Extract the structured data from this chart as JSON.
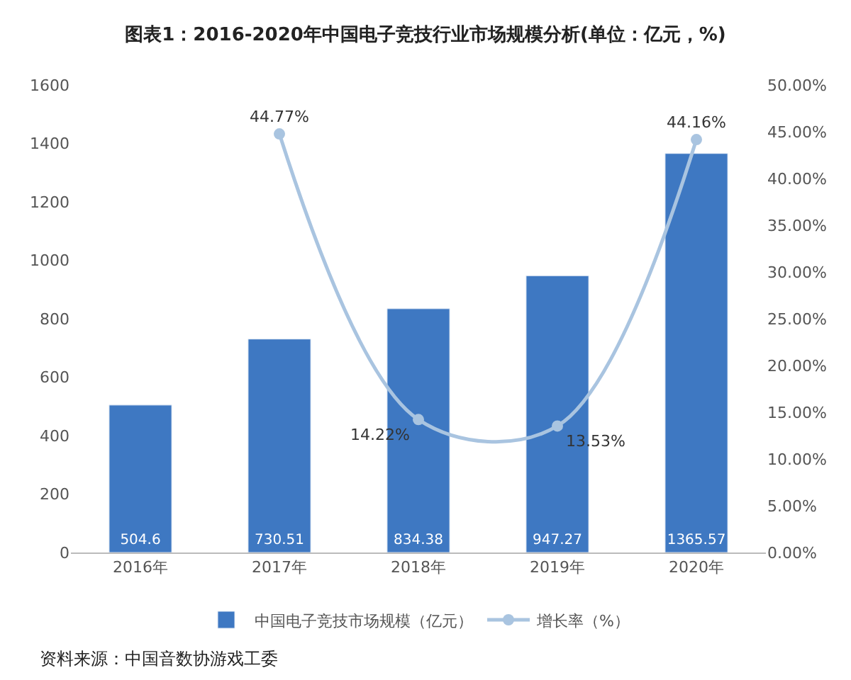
{
  "chart_data": {
    "type": "bar",
    "title": "图表1：2016-2020年中国电子竞技行业市场规模分析(单位：亿元，%)",
    "categories": [
      "2016年",
      "2017年",
      "2018年",
      "2019年",
      "2020年"
    ],
    "series": [
      {
        "name": "中国电子竞技市场规模（亿元）",
        "type": "bar",
        "color": "#3e78c2",
        "values": [
          504.6,
          730.51,
          834.38,
          947.27,
          1365.57
        ]
      },
      {
        "name": "增长率（%）",
        "type": "line",
        "axis": "y2",
        "color": "#a9c4e0",
        "marker": "circle",
        "values": [
          null,
          44.77,
          14.22,
          13.53,
          44.16
        ],
        "value_labels": [
          null,
          "44.77%",
          "14.22%",
          "13.53%",
          "44.16%"
        ]
      }
    ],
    "data_labels": true,
    "ylim": [
      0,
      1600
    ],
    "yticks": [
      0,
      200,
      400,
      600,
      800,
      1000,
      1200,
      1400,
      1600
    ],
    "y2lim": [
      0,
      50
    ],
    "y2ticks": [
      {
        "value": 0,
        "label": "0.00%"
      },
      {
        "value": 5,
        "label": "5.00%"
      },
      {
        "value": 10,
        "label": "10.00%"
      },
      {
        "value": 15,
        "label": "15.00%"
      },
      {
        "value": 20,
        "label": "20.00%"
      },
      {
        "value": 25,
        "label": "25.00%"
      },
      {
        "value": 30,
        "label": "30.00%"
      },
      {
        "value": 35,
        "label": "35.00%"
      },
      {
        "value": 40,
        "label": "40.00%"
      },
      {
        "value": 45,
        "label": "45.00%"
      },
      {
        "value": 50,
        "label": "50.00%"
      }
    ],
    "legend": "bottom",
    "annotations": [
      "资料来源：中国音数协游戏工委"
    ]
  }
}
